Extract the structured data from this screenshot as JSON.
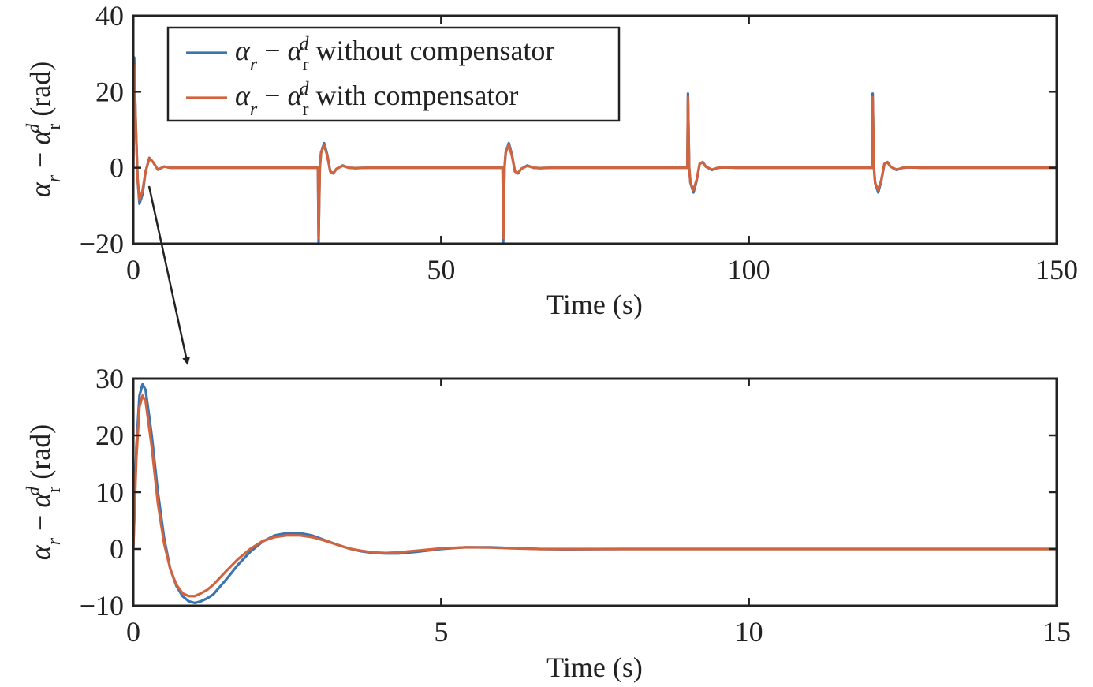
{
  "colors": {
    "without_compensator": "#3b74b1",
    "with_compensator": "#d0643e",
    "axes": "#222222"
  },
  "legend": {
    "items": [
      {
        "series": "without_compensator",
        "label_after": " without compensator"
      },
      {
        "series": "with_compensator",
        "label_after": " with compensator"
      }
    ],
    "placement": "top-left"
  },
  "math_labels": {
    "alpha": "α",
    "sub_r_italic": "r",
    "minus": " − ",
    "sub_r_roman": "r",
    "sup_d": "d",
    "unit": " (rad)"
  },
  "annotation": {
    "type": "zoom-arrow",
    "from": "upper-plot-first-transient",
    "to": "lower-plot"
  },
  "chart_data": [
    {
      "type": "line",
      "xlabel": "Time (s)",
      "ylabel": "αr − αrd (rad)",
      "xlim": [
        0,
        150
      ],
      "ylim": [
        -20,
        40
      ],
      "xticks": [
        0,
        50,
        100,
        150
      ],
      "yticks": [
        -20,
        0,
        20,
        40
      ],
      "xtick_labels": [
        "0",
        "50",
        "100",
        "150"
      ],
      "ytick_labels": [
        "−20",
        "0",
        "20",
        "40"
      ],
      "grid": false,
      "series": [
        {
          "key": "without_compensator",
          "x": [
            0,
            0.15,
            0.4,
            0.7,
            1.0,
            1.5,
            2.0,
            2.6,
            3.2,
            4.0,
            5.0,
            6.0,
            8.0,
            30.0,
            30.1,
            30.3,
            30.5,
            31.0,
            31.5,
            32.0,
            32.5,
            33.0,
            34.0,
            35.0,
            36.0,
            38.0,
            60.0,
            60.1,
            60.3,
            60.5,
            61.0,
            61.5,
            62.0,
            62.5,
            63.0,
            64.0,
            65.0,
            66.0,
            68.0,
            90.0,
            90.1,
            90.3,
            90.5,
            91.0,
            91.5,
            92.0,
            92.5,
            93.0,
            94.0,
            95.0,
            96.0,
            98.0,
            120.0,
            120.1,
            120.3,
            120.5,
            121.0,
            121.5,
            122.0,
            122.5,
            123.0,
            124.0,
            125.0,
            126.0,
            128.0,
            150.0
          ],
          "y": [
            0,
            29,
            12,
            -3,
            -9.5,
            -7,
            -1,
            2.6,
            1.5,
            -0.5,
            0.3,
            0,
            0,
            0,
            -19.5,
            0,
            4,
            6.5,
            3.5,
            -1,
            -1.5,
            -0.3,
            0.6,
            0,
            -0.1,
            0,
            0,
            -19.5,
            0,
            4,
            6.5,
            3.5,
            -1,
            -1.5,
            -0.3,
            0.6,
            0,
            -0.1,
            0,
            0,
            19.5,
            0,
            -4,
            -6.5,
            -3.5,
            1,
            1.5,
            0.3,
            -0.6,
            0,
            0.1,
            0,
            0,
            19.5,
            0,
            -4,
            -6.5,
            -3.5,
            1,
            1.5,
            0.3,
            -0.6,
            0,
            0.1,
            0,
            0
          ]
        },
        {
          "key": "with_compensator",
          "x": [
            0,
            0.15,
            0.4,
            0.7,
            1.0,
            1.5,
            2.0,
            2.6,
            3.2,
            4.0,
            5.0,
            6.0,
            8.0,
            30.0,
            30.1,
            30.3,
            30.5,
            31.0,
            31.5,
            32.0,
            32.5,
            33.0,
            34.0,
            35.0,
            36.0,
            38.0,
            60.0,
            60.1,
            60.3,
            60.5,
            61.0,
            61.5,
            62.0,
            62.5,
            63.0,
            64.0,
            65.0,
            66.0,
            68.0,
            90.0,
            90.1,
            90.3,
            90.5,
            91.0,
            91.5,
            92.0,
            92.5,
            93.0,
            94.0,
            95.0,
            96.0,
            98.0,
            120.0,
            120.1,
            120.3,
            120.5,
            121.0,
            121.5,
            122.0,
            122.5,
            123.0,
            124.0,
            125.0,
            126.0,
            128.0,
            150.0
          ],
          "y": [
            0,
            27,
            12,
            -3,
            -8.5,
            -6,
            -1,
            2.4,
            1.5,
            -0.5,
            0.3,
            0,
            0,
            0,
            -18.5,
            0,
            4,
            6,
            3.2,
            -1,
            -1.4,
            -0.3,
            0.5,
            0,
            -0.1,
            0,
            0,
            -18.5,
            0,
            4,
            6,
            3.2,
            -1,
            -1.4,
            -0.3,
            0.5,
            0,
            -0.1,
            0,
            0,
            18.5,
            0,
            -4,
            -5.8,
            -3.2,
            1,
            1.4,
            0.3,
            -0.5,
            0,
            0.1,
            0,
            0,
            18.5,
            0,
            -4,
            -5.8,
            -3.2,
            1,
            1.4,
            0.3,
            -0.5,
            0,
            0.1,
            0,
            0
          ]
        }
      ]
    },
    {
      "type": "line",
      "xlabel": "Time (s)",
      "ylabel": "αr − αrd (rad)",
      "xlim": [
        0,
        15
      ],
      "ylim": [
        -10,
        30
      ],
      "xticks": [
        0,
        5,
        10,
        15
      ],
      "yticks": [
        -10,
        0,
        10,
        20,
        30
      ],
      "xtick_labels": [
        "0",
        "5",
        "10",
        "15"
      ],
      "ytick_labels": [
        "−10",
        "0",
        "10",
        "20",
        "30"
      ],
      "grid": false,
      "series": [
        {
          "key": "without_compensator",
          "x": [
            0,
            0.05,
            0.1,
            0.15,
            0.2,
            0.3,
            0.4,
            0.5,
            0.6,
            0.7,
            0.8,
            0.9,
            1.0,
            1.1,
            1.2,
            1.3,
            1.5,
            1.7,
            1.9,
            2.1,
            2.3,
            2.5,
            2.7,
            2.9,
            3.1,
            3.3,
            3.5,
            3.7,
            3.9,
            4.1,
            4.3,
            4.6,
            5.0,
            5.4,
            5.8,
            6.2,
            6.6,
            7.0,
            8.0,
            9.0,
            10.0,
            12.0,
            15.0
          ],
          "y": [
            0,
            18,
            27,
            29,
            28,
            20,
            10,
            2,
            -3.5,
            -6.5,
            -8.3,
            -9.2,
            -9.5,
            -9.2,
            -8.7,
            -8,
            -5.5,
            -2.8,
            -0.5,
            1.3,
            2.4,
            2.8,
            2.8,
            2.4,
            1.6,
            0.8,
            0.1,
            -0.4,
            -0.7,
            -0.8,
            -0.8,
            -0.5,
            0,
            0.3,
            0.3,
            0.15,
            0,
            -0.05,
            0,
            0,
            0,
            0,
            0
          ]
        },
        {
          "key": "with_compensator",
          "x": [
            0,
            0.05,
            0.1,
            0.15,
            0.2,
            0.3,
            0.4,
            0.5,
            0.6,
            0.7,
            0.8,
            0.9,
            1.0,
            1.1,
            1.2,
            1.3,
            1.5,
            1.7,
            1.9,
            2.1,
            2.3,
            2.5,
            2.7,
            2.9,
            3.1,
            3.3,
            3.5,
            3.7,
            3.9,
            4.1,
            4.3,
            4.6,
            5.0,
            5.4,
            5.8,
            6.2,
            6.6,
            7.0,
            8.0,
            9.0,
            10.0,
            12.0,
            15.0
          ],
          "y": [
            0,
            16,
            25,
            27,
            26,
            18,
            8,
            1,
            -3.5,
            -6.3,
            -7.8,
            -8.3,
            -8.3,
            -7.8,
            -7.2,
            -6.3,
            -4,
            -1.8,
            0,
            1.4,
            2.1,
            2.4,
            2.4,
            2.1,
            1.5,
            0.8,
            0.1,
            -0.3,
            -0.6,
            -0.7,
            -0.6,
            -0.3,
            0.1,
            0.3,
            0.25,
            0.1,
            0,
            0,
            0,
            0,
            0,
            0,
            0
          ]
        }
      ]
    }
  ]
}
